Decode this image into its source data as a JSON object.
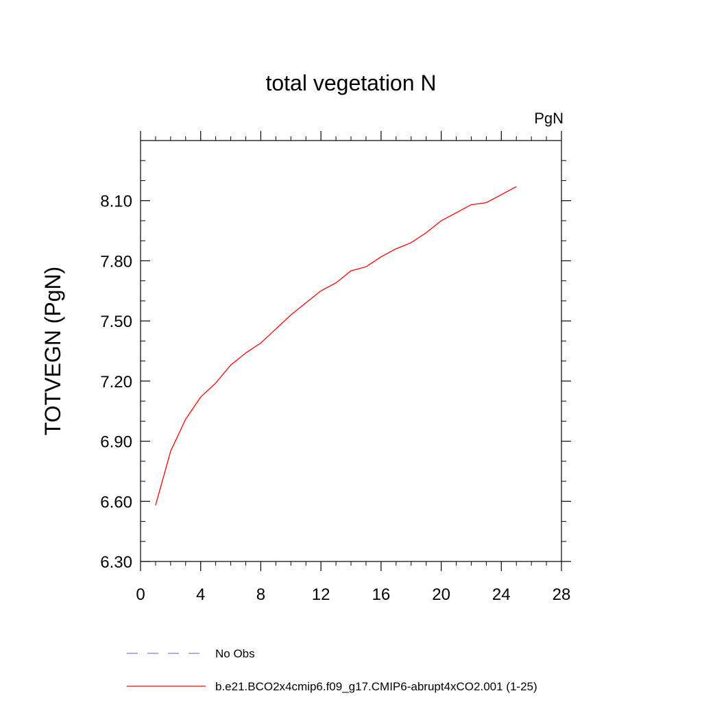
{
  "chart_data": {
    "type": "line",
    "title": "total vegetation N",
    "units": "PgN",
    "xlabel": "",
    "ylabel": "TOTVEGN  (PgN)",
    "xlim": [
      0,
      28
    ],
    "ylim": [
      6.3,
      8.4
    ],
    "x_ticks": [
      0,
      4,
      8,
      12,
      16,
      20,
      24,
      28
    ],
    "x_tick_labels": [
      "0",
      "4",
      "8",
      "12",
      "16",
      "20",
      "24",
      "28"
    ],
    "y_ticks": [
      6.3,
      6.6,
      6.9,
      7.2,
      7.5,
      7.8,
      8.1
    ],
    "y_tick_labels": [
      "6.30",
      "6.60",
      "6.90",
      "7.20",
      "7.50",
      "7.80",
      "8.10"
    ],
    "grid": false,
    "legend_position": "bottom-left",
    "series": [
      {
        "name": "No Obs",
        "color": "#7f7fc0",
        "dash": "dashed",
        "x": [],
        "y": []
      },
      {
        "name": "b.e21.BCO2x4cmip6.f09_g17.CMIP6-abrupt4xCO2.001 (1-25)",
        "color": "#ff0000",
        "dash": "solid",
        "x": [
          1,
          2,
          3,
          4,
          5,
          6,
          7,
          8,
          9,
          10,
          11,
          12,
          13,
          14,
          15,
          16,
          17,
          18,
          19,
          20,
          21,
          22,
          23,
          24,
          25
        ],
        "y": [
          6.58,
          6.85,
          7.01,
          7.12,
          7.19,
          7.28,
          7.34,
          7.39,
          7.46,
          7.53,
          7.59,
          7.65,
          7.69,
          7.75,
          7.77,
          7.82,
          7.86,
          7.89,
          7.94,
          8.0,
          8.04,
          8.08,
          8.09,
          8.13,
          8.17
        ]
      }
    ]
  }
}
